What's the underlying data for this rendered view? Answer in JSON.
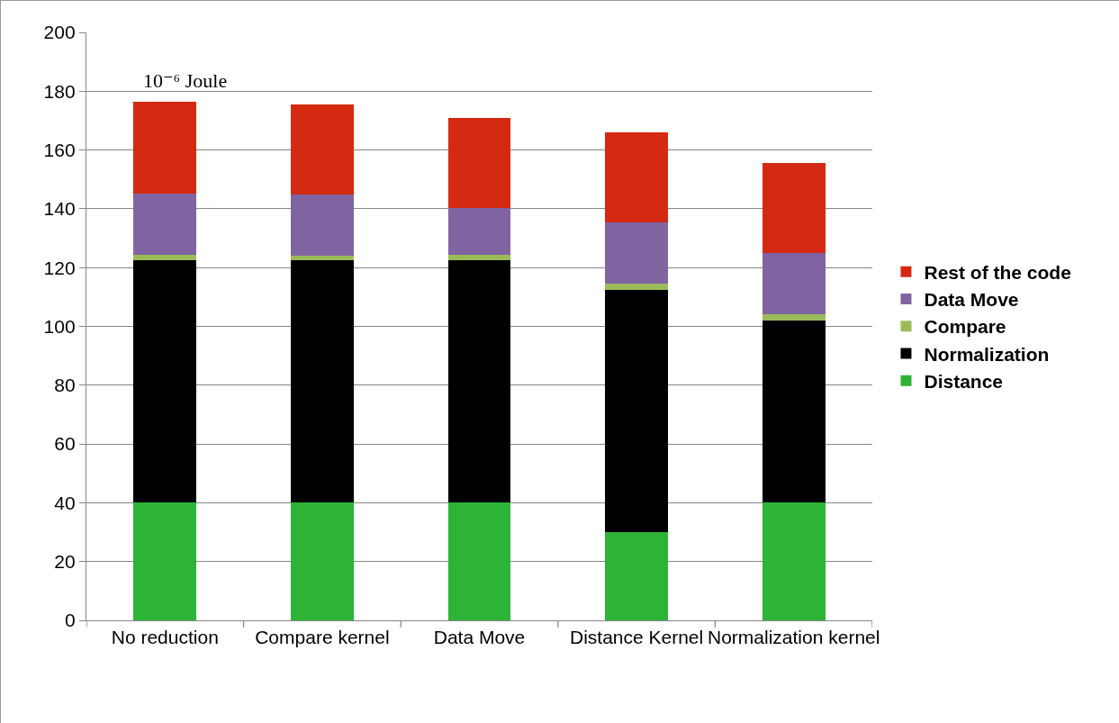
{
  "chart_data": {
    "type": "bar",
    "stacked": true,
    "categories": [
      "No reduction",
      "Compare kernel",
      "Data Move",
      "Distance Kernel",
      "Normalization kernel"
    ],
    "series": [
      {
        "name": "Distance",
        "color": "#2db336",
        "values": [
          40,
          40,
          40,
          30,
          40
        ]
      },
      {
        "name": "Normalization",
        "color": "#000000",
        "values": [
          82.5,
          82.5,
          82.5,
          82.5,
          62
        ]
      },
      {
        "name": "Compare",
        "color": "#9bbb59",
        "values": [
          1.8,
          1.5,
          1.8,
          2,
          2
        ]
      },
      {
        "name": "Data Move",
        "color": "#8064a2",
        "values": [
          21,
          21,
          16,
          21,
          21
        ]
      },
      {
        "name": "Rest of the code",
        "color": "#d42a12",
        "values": [
          31,
          30.5,
          30.5,
          30.5,
          30.5
        ]
      }
    ],
    "ylim": [
      0,
      200
    ],
    "yticks": [
      0,
      20,
      40,
      60,
      80,
      100,
      120,
      140,
      160,
      180,
      200
    ],
    "grid": "y",
    "legend": "right",
    "annotations": [
      "10⁻⁶ Joule"
    ]
  }
}
